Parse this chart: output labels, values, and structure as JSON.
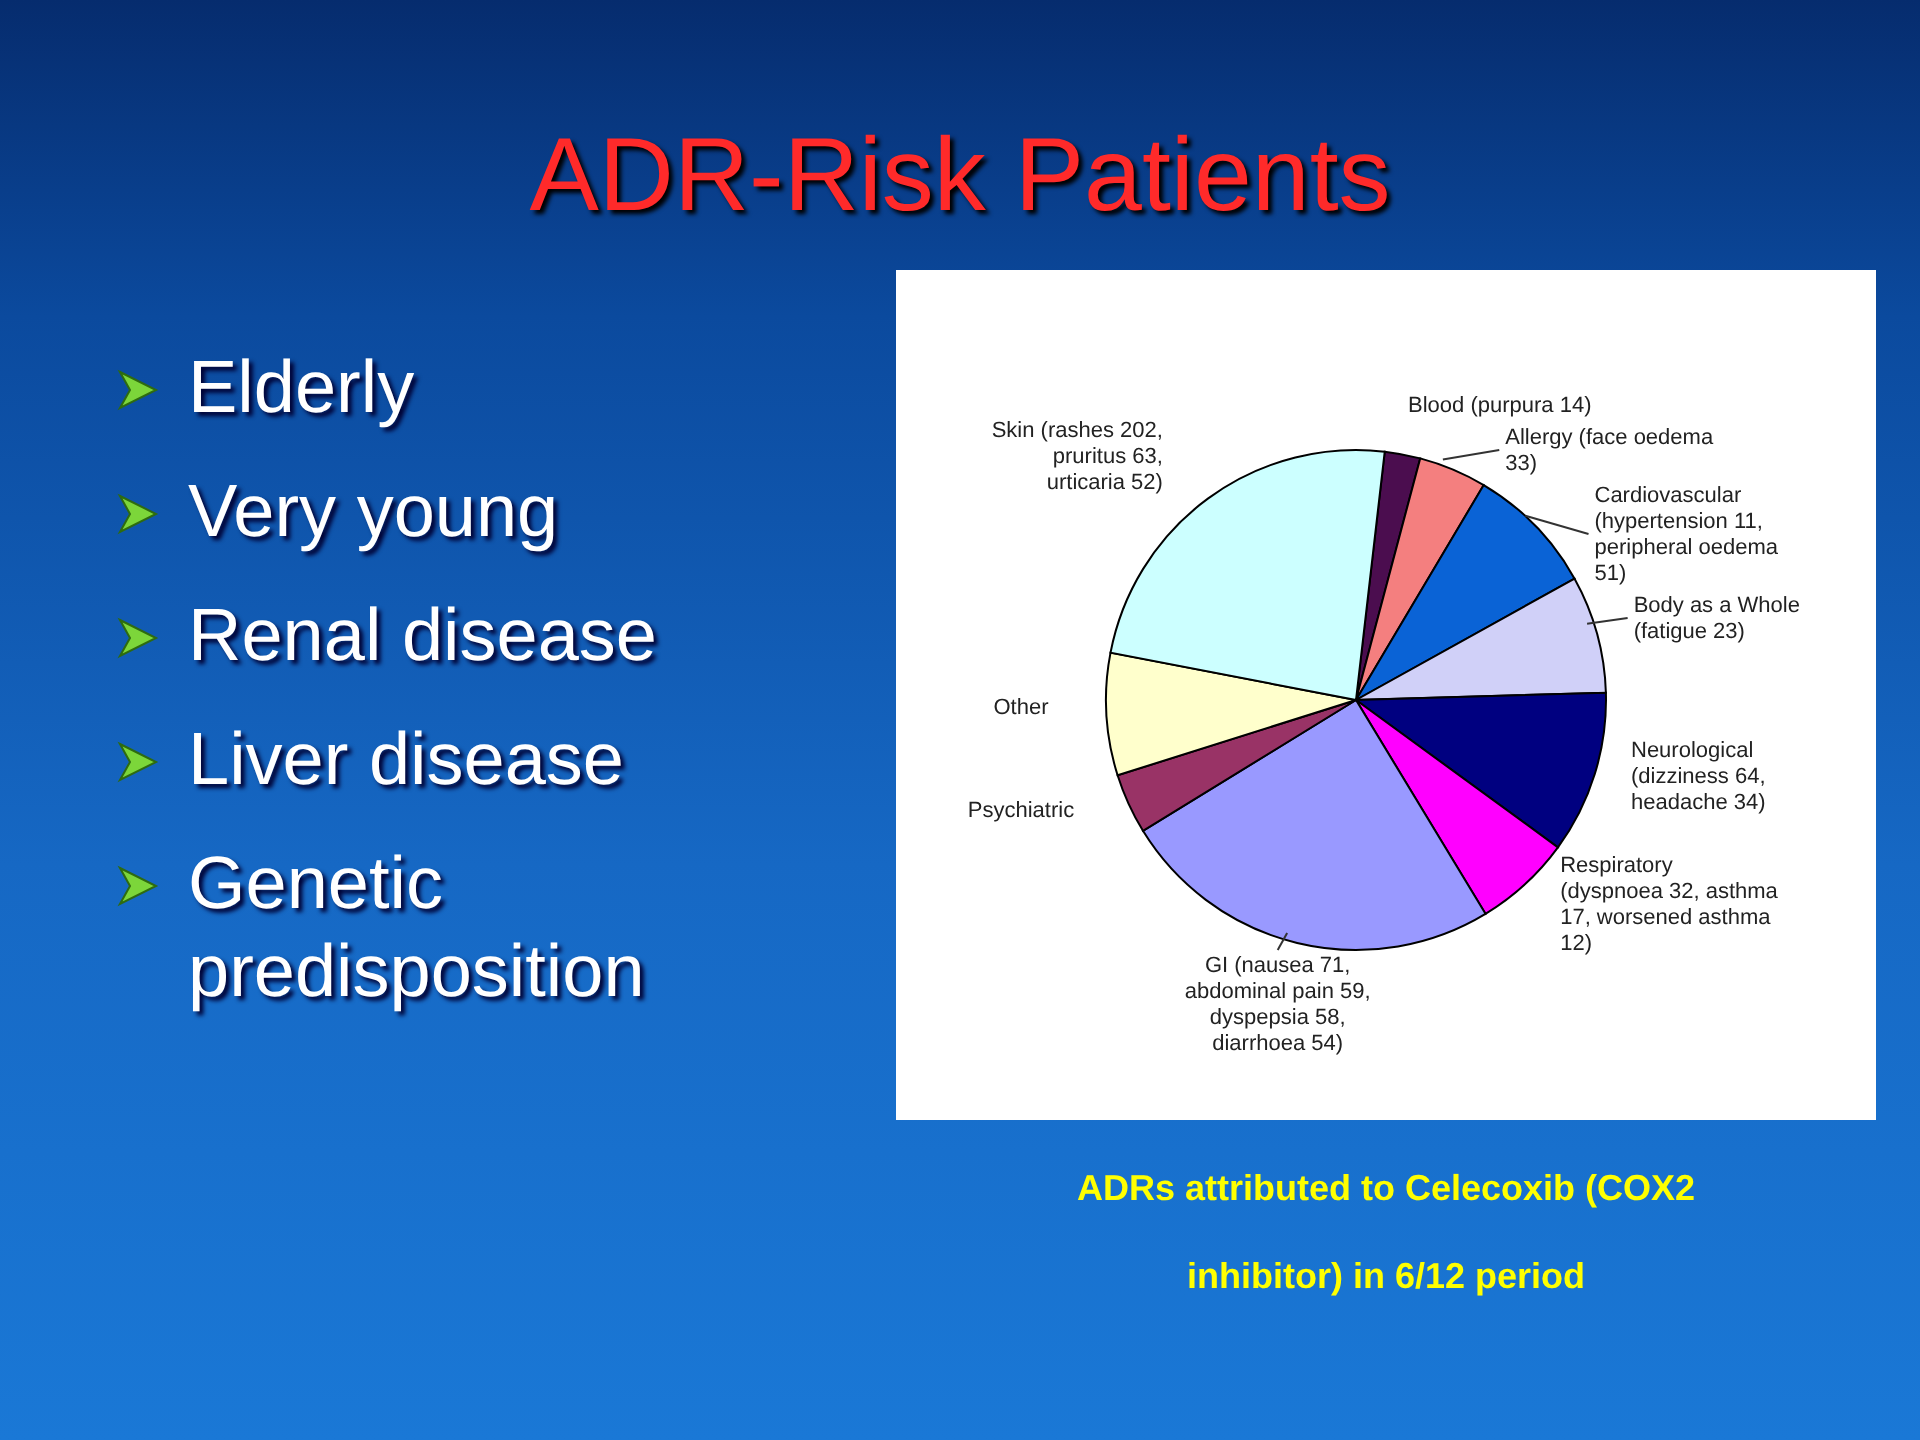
{
  "chart_data": {
    "type": "pie",
    "title": "ADR-Risk Patients",
    "categories": [
      "Blood (purpura 14)",
      "Allergy (face oedema 33)",
      "Cardiovascular (hypertension 11, peripheral oedema 51)",
      "Body as a Whole (fatigue 23)",
      "Neurological (dizziness 64, headache 34)",
      "Respiratory (dyspnoea 32, asthma 17, worsened asthma 12)",
      "GI (nausea 71, abdominal pain 59, dyspepsia 58, diarrhoea 54)",
      "Psychiatric",
      "Other",
      "Skin (rashes 202, pruritus 63, urticaria 52)"
    ],
    "values": [
      2.3,
      4.4,
      8.4,
      7.6,
      10.5,
      6.3,
      24.9,
      3.9,
      7.9,
      23.8
    ],
    "colors": [
      "#4b0d4f",
      "#f47f7f",
      "#0a63d6",
      "#d0d0f8",
      "#000080",
      "#ff00ff",
      "#9999ff",
      "#993366",
      "#ffffcc",
      "#ccffff"
    ],
    "annotations": [
      "Elderly",
      "Very young",
      "Renal disease",
      "Liver disease",
      "Genetic predisposition",
      "ADRs attributed to Celecoxib (COX2 inhibitor) in 6/12 period"
    ]
  }
}
